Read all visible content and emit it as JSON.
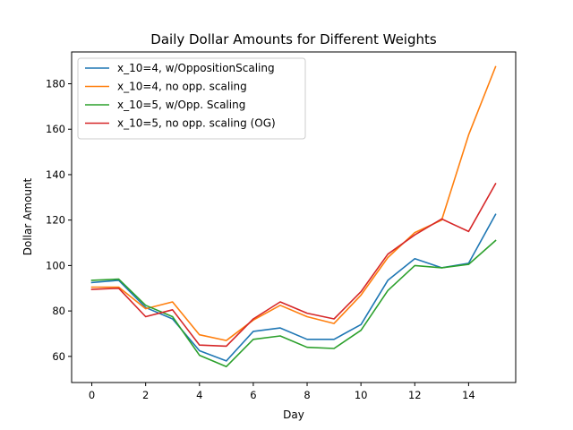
{
  "chart_data": {
    "type": "line",
    "title": "Daily Dollar Amounts for Different Weights",
    "xlabel": "Day",
    "ylabel": "Dollar Amount",
    "xlim": [
      -0.75,
      15.75
    ],
    "ylim": [
      48.5,
      194
    ],
    "xticks": [
      0,
      2,
      4,
      6,
      8,
      10,
      12,
      14
    ],
    "yticks": [
      60,
      80,
      100,
      120,
      140,
      160,
      180
    ],
    "legend_position": "top-left",
    "grid": false,
    "x": [
      0,
      1,
      2,
      3,
      4,
      5,
      6,
      7,
      8,
      9,
      10,
      11,
      12,
      13,
      14,
      15
    ],
    "series": [
      {
        "name": "x_10=4, w/OppositionScaling",
        "color": "#1f77b4",
        "values": [
          92.5,
          93.5,
          81.5,
          76.5,
          62.5,
          58,
          71,
          72.5,
          67.5,
          67.5,
          74,
          93.5,
          103,
          99,
          101,
          122.5
        ]
      },
      {
        "name": "x_10=4, no opp. scaling",
        "color": "#ff7f0e",
        "values": [
          90.5,
          90.5,
          81,
          84,
          69.5,
          67,
          76,
          82.5,
          77.5,
          74.5,
          87,
          103.5,
          114.5,
          120,
          157.5,
          187.5
        ]
      },
      {
        "name": "x_10=5, w/Opp. Scaling",
        "color": "#2ca02c",
        "values": [
          93.5,
          94,
          82.5,
          77.5,
          60.5,
          55.5,
          67.5,
          69,
          64,
          63.5,
          71.5,
          89,
          100,
          99,
          100.5,
          111
        ]
      },
      {
        "name": "x_10=5, no opp. scaling (OG)",
        "color": "#d62728",
        "values": [
          89.5,
          90,
          77.5,
          80.5,
          65,
          64.5,
          76.5,
          84,
          79,
          76.5,
          88.5,
          105,
          113.5,
          120.5,
          115,
          136
        ]
      }
    ]
  }
}
